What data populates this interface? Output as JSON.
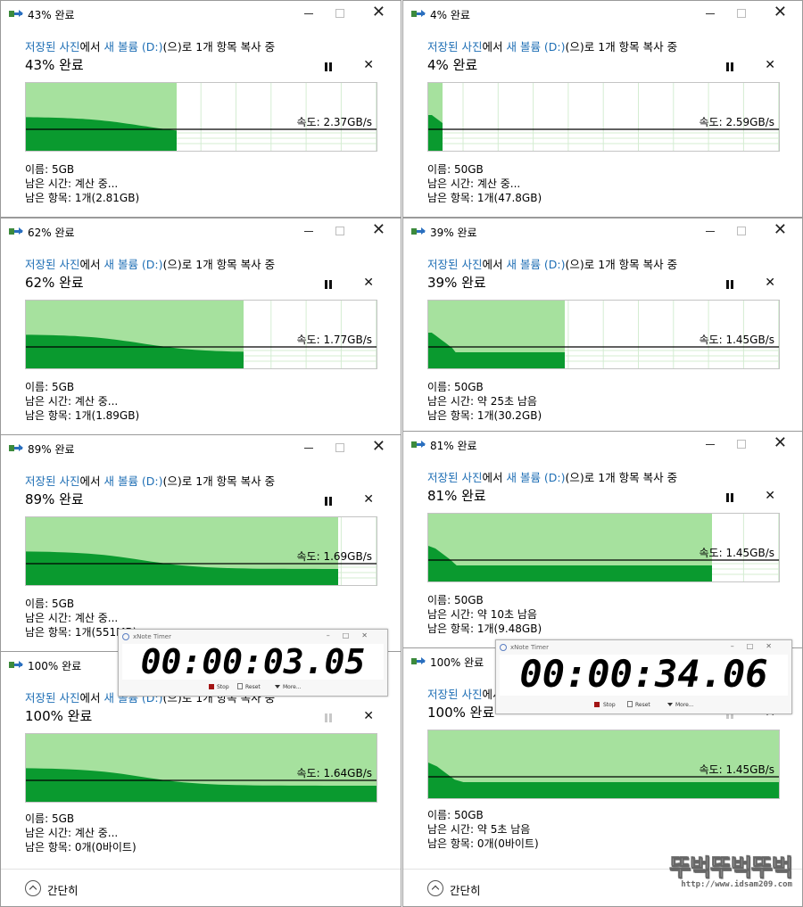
{
  "route": {
    "source": "저장된 사진",
    "mid": "에서 ",
    "dest": "새 볼륨 (D:)",
    "suffix": "(으)로 1개 항목 복사 중"
  },
  "labels": {
    "name_prefix": "이름: ",
    "time_prefix": "남은 시간: ",
    "items_prefix": "남은 항목: ",
    "speed_prefix": "속도: "
  },
  "dialogs": [
    {
      "title": "43% 완료",
      "percent_text": "43% 완료",
      "progress": 0.43,
      "speed": "2.37GB/s",
      "name": "5GB",
      "time_left": "계산 중...",
      "items_left": "1개(2.81GB)",
      "curve": "small"
    },
    {
      "title": "4% 완료",
      "percent_text": "4% 완료",
      "progress": 0.04,
      "speed": "2.59GB/s",
      "name": "50GB",
      "time_left": "계산 중...",
      "items_left": "1개(47.8GB)",
      "curve": "large"
    },
    {
      "title": "62% 완료",
      "percent_text": "62% 완료",
      "progress": 0.62,
      "speed": "1.77GB/s",
      "name": "5GB",
      "time_left": "계산 중...",
      "items_left": "1개(1.89GB)",
      "curve": "small"
    },
    {
      "title": "39% 완료",
      "percent_text": "39% 완료",
      "progress": 0.39,
      "speed": "1.45GB/s",
      "name": "50GB",
      "time_left": "약 25초 남음",
      "items_left": "1개(30.2GB)",
      "curve": "large"
    },
    {
      "title": "89% 완료",
      "percent_text": "89% 완료",
      "progress": 0.89,
      "speed": "1.69GB/s",
      "name": "5GB",
      "time_left": "계산 중...",
      "items_left": "1개(551MB)",
      "curve": "small"
    },
    {
      "title": "81% 완료",
      "percent_text": "81% 완료",
      "progress": 0.81,
      "speed": "1.45GB/s",
      "name": "50GB",
      "time_left": "약 10초 남음",
      "items_left": "1개(9.48GB)",
      "curve": "large"
    },
    {
      "title": "100% 완료",
      "percent_text": "100% 완료",
      "progress": 1.0,
      "speed": "1.64GB/s",
      "name": "5GB",
      "time_left": "계산 중...",
      "items_left": "0개(0바이트)",
      "curve": "small",
      "simple_label": "간단히"
    },
    {
      "title": "100% 완료",
      "percent_text": "100% 완료",
      "progress": 1.0,
      "speed": "1.45GB/s",
      "name": "50GB",
      "time_left": "약 5초 남음",
      "items_left": "0개(0바이트)",
      "curve": "large",
      "simple_label": "간단히"
    }
  ],
  "timers": [
    {
      "title": "xNote Timer",
      "time": "00:00:03.05",
      "stop": "Stop",
      "reset": "Reset",
      "more": "More..."
    },
    {
      "title": "xNote Timer",
      "time": "00:00:34.06",
      "stop": "Stop",
      "reset": "Reset",
      "more": "More..."
    }
  ],
  "watermark": {
    "main": "뚜벅뚜벅뚜벅",
    "sub": "http://www.idsam209.com"
  },
  "colors": {
    "progress_fill": "#a6e19e",
    "speed_fill": "#0a9a2f",
    "link": "#1f6fb5",
    "grid": "#d4ecd2"
  }
}
